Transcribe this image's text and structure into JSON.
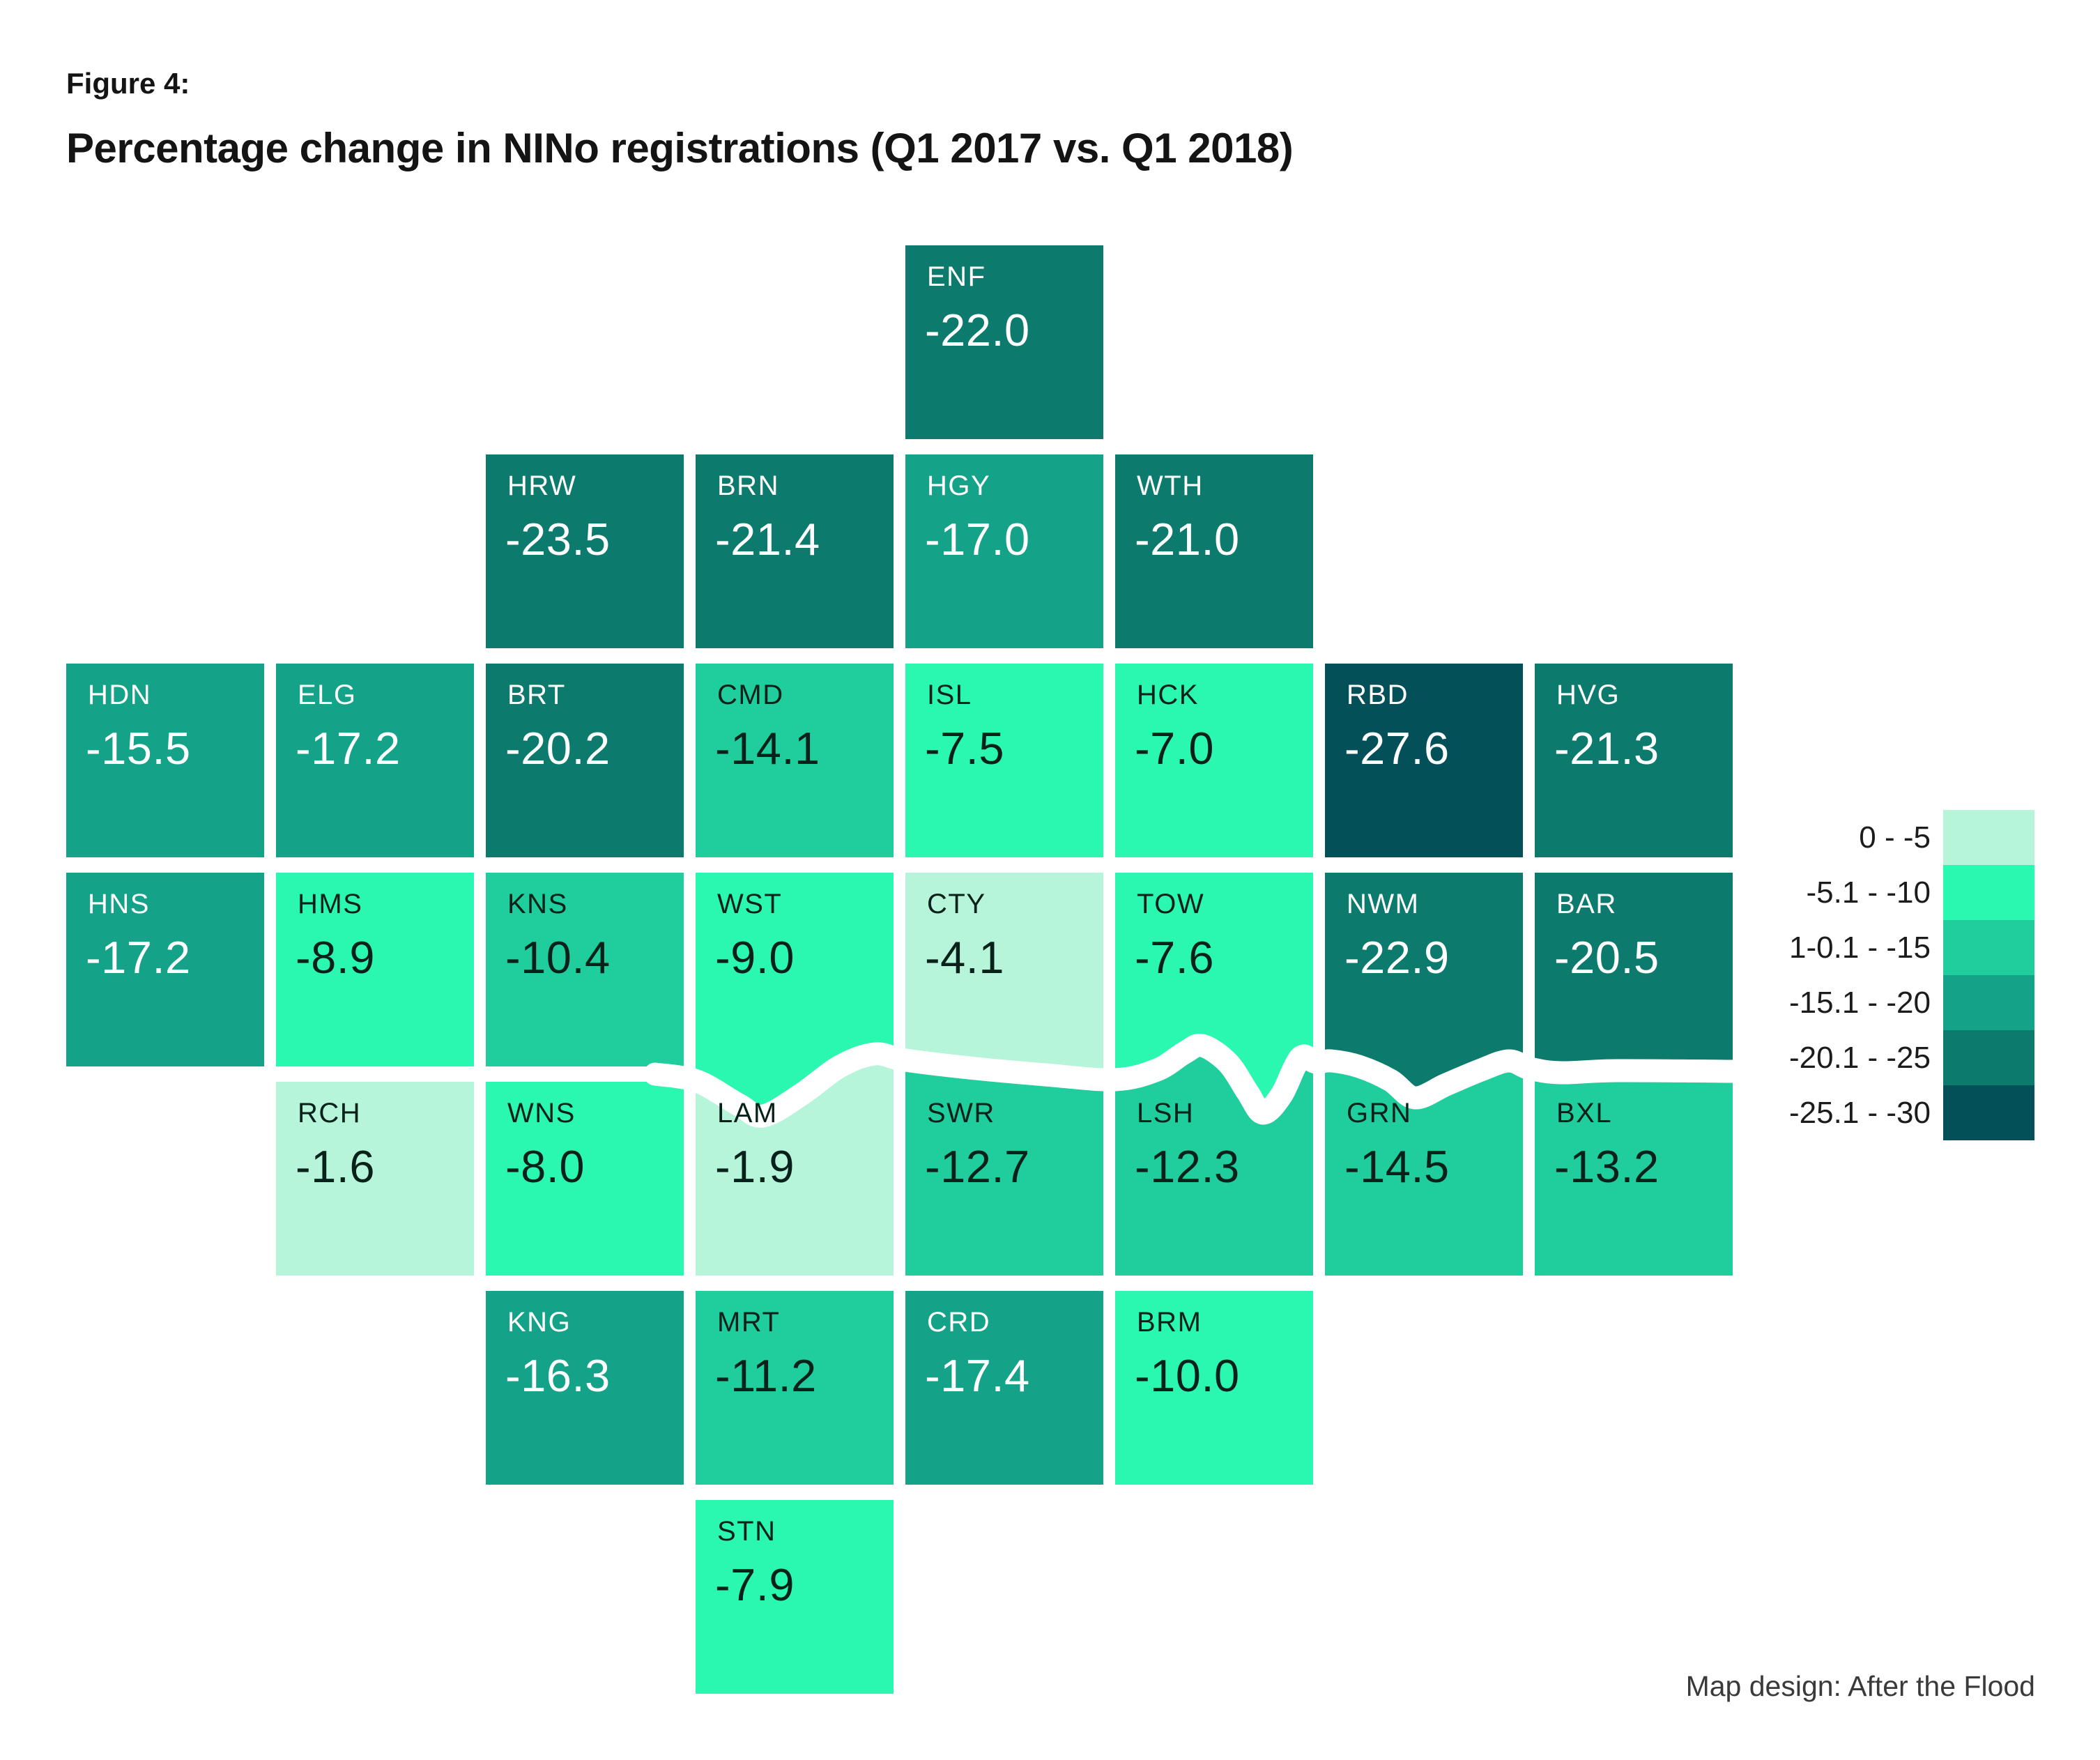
{
  "figure_label": "Figure 4:",
  "title": "Percentage change in NINo registrations (Q1 2017 vs. Q1 2018)",
  "credit": "Map design: After the Flood",
  "colors": {
    "background": "#ffffff",
    "river": "#ffffff",
    "dark_text_on_tile": "#08211b",
    "light_text_on_tile": "#ffffff",
    "title_text": "#141414",
    "legend_text": "#1c1c1c",
    "credit_text": "#3a3a3a"
  },
  "legend": {
    "items": [
      {
        "label": "0 - -5",
        "color": "#b6f5d9"
      },
      {
        "label": "-5.1 - -10",
        "color": "#2bf8b0"
      },
      {
        "label": "1-0.1 - -15",
        "color": "#20cd9c"
      },
      {
        "label": "-15.1 - -20",
        "color": "#14a389"
      },
      {
        "label": "-20.1 - -25",
        "color": "#0c7a6d"
      },
      {
        "label": "-25.1 - -30",
        "color": "#045059"
      }
    ]
  },
  "chart_data": {
    "type": "heatmap",
    "subtype": "tile-grid-map-of-london-boroughs",
    "title": "Percentage change in NINo registrations (Q1 2017 vs. Q1 2018)",
    "unit": "percent change",
    "value_range": [
      -30,
      0
    ],
    "bins": [
      {
        "label": "0 - -5",
        "min": -5,
        "max": 0,
        "color": "#b6f5d9",
        "text": "#08211b"
      },
      {
        "label": "-5.1 - -10",
        "min": -10,
        "max": -5.1,
        "color": "#2bf8b0",
        "text": "#08211b"
      },
      {
        "label": "1-0.1 - -15",
        "min": -15,
        "max": -10.1,
        "color": "#20cd9c",
        "text": "#08211b"
      },
      {
        "label": "-15.1 - -20",
        "min": -20,
        "max": -15.1,
        "color": "#14a389",
        "text": "#ffffff"
      },
      {
        "label": "-20.1 - -25",
        "min": -25,
        "max": -20.1,
        "color": "#0c7a6d",
        "text": "#ffffff"
      },
      {
        "label": "-25.1 - -30",
        "min": -30,
        "max": -25.1,
        "color": "#045059",
        "text": "#ffffff"
      }
    ],
    "boroughs": [
      {
        "code": "ENF",
        "value": -22.0,
        "row": 0,
        "col": 4
      },
      {
        "code": "HRW",
        "value": -23.5,
        "row": 1,
        "col": 2
      },
      {
        "code": "BRN",
        "value": -21.4,
        "row": 1,
        "col": 3
      },
      {
        "code": "HGY",
        "value": -17.0,
        "row": 1,
        "col": 4
      },
      {
        "code": "WTH",
        "value": -21.0,
        "row": 1,
        "col": 5
      },
      {
        "code": "HDN",
        "value": -15.5,
        "row": 2,
        "col": 0
      },
      {
        "code": "ELG",
        "value": -17.2,
        "row": 2,
        "col": 1
      },
      {
        "code": "BRT",
        "value": -20.2,
        "row": 2,
        "col": 2
      },
      {
        "code": "CMD",
        "value": -14.1,
        "row": 2,
        "col": 3
      },
      {
        "code": "ISL",
        "value": -7.5,
        "row": 2,
        "col": 4
      },
      {
        "code": "HCK",
        "value": -7.0,
        "row": 2,
        "col": 5
      },
      {
        "code": "RBD",
        "value": -27.6,
        "row": 2,
        "col": 6
      },
      {
        "code": "HVG",
        "value": -21.3,
        "row": 2,
        "col": 7
      },
      {
        "code": "HNS",
        "value": -17.2,
        "row": 3,
        "col": 0
      },
      {
        "code": "HMS",
        "value": -8.9,
        "row": 3,
        "col": 1
      },
      {
        "code": "KNS",
        "value": -10.4,
        "row": 3,
        "col": 2
      },
      {
        "code": "WST",
        "value": -9.0,
        "row": 3,
        "col": 3
      },
      {
        "code": "CTY",
        "value": -4.1,
        "row": 3,
        "col": 4
      },
      {
        "code": "TOW",
        "value": -7.6,
        "row": 3,
        "col": 5
      },
      {
        "code": "NWM",
        "value": -22.9,
        "row": 3,
        "col": 6
      },
      {
        "code": "BAR",
        "value": -20.5,
        "row": 3,
        "col": 7
      },
      {
        "code": "RCH",
        "value": -1.6,
        "row": 4,
        "col": 1
      },
      {
        "code": "WNS",
        "value": -8.0,
        "row": 4,
        "col": 2
      },
      {
        "code": "LAM",
        "value": -1.9,
        "row": 4,
        "col": 3
      },
      {
        "code": "SWR",
        "value": -12.7,
        "row": 4,
        "col": 4
      },
      {
        "code": "LSH",
        "value": -12.3,
        "row": 4,
        "col": 5
      },
      {
        "code": "GRN",
        "value": -14.5,
        "row": 4,
        "col": 6
      },
      {
        "code": "BXL",
        "value": -13.2,
        "row": 4,
        "col": 7
      },
      {
        "code": "KNG",
        "value": -16.3,
        "row": 5,
        "col": 2
      },
      {
        "code": "MRT",
        "value": -11.2,
        "row": 5,
        "col": 3
      },
      {
        "code": "CRD",
        "value": -17.4,
        "row": 5,
        "col": 4
      },
      {
        "code": "BRM",
        "value": -10.0,
        "row": 5,
        "col": 5
      },
      {
        "code": "STN",
        "value": -7.9,
        "row": 6,
        "col": 3
      }
    ],
    "river": {
      "name": "River Thames",
      "between_rows": [
        3,
        4
      ],
      "points": [
        [
          940,
          1541
        ],
        [
          1000,
          1551
        ],
        [
          1060,
          1585
        ],
        [
          1095,
          1601
        ],
        [
          1150,
          1570
        ],
        [
          1205,
          1530
        ],
        [
          1255,
          1512
        ],
        [
          1299,
          1521
        ],
        [
          1400,
          1533
        ],
        [
          1500,
          1542
        ],
        [
          1600,
          1549
        ],
        [
          1660,
          1535
        ],
        [
          1700,
          1510
        ],
        [
          1725,
          1500
        ],
        [
          1762,
          1525
        ],
        [
          1790,
          1567
        ],
        [
          1812,
          1597
        ],
        [
          1838,
          1572
        ],
        [
          1858,
          1530
        ],
        [
          1870,
          1515
        ],
        [
          1888,
          1524
        ],
        [
          1910,
          1522
        ],
        [
          1950,
          1530
        ],
        [
          1995,
          1550
        ],
        [
          2030,
          1575
        ],
        [
          2075,
          1556
        ],
        [
          2125,
          1535
        ],
        [
          2165,
          1522
        ],
        [
          2195,
          1533
        ],
        [
          2240,
          1539
        ],
        [
          2320,
          1536
        ],
        [
          2486,
          1537
        ]
      ]
    },
    "layout_hint": "8 columns x 7 rows tile grid; legend at right; white Thames ribbon separates rows 3 and 4 for columns 3-7"
  }
}
